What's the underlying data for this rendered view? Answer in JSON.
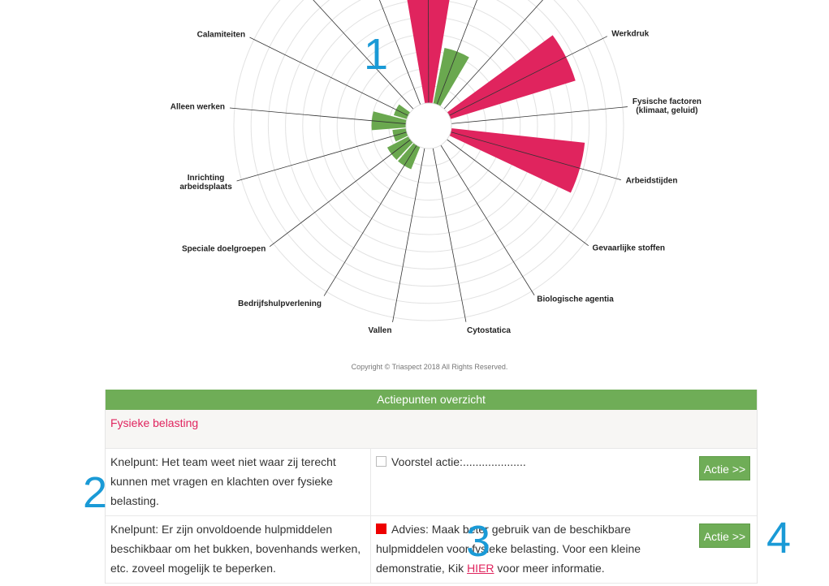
{
  "chart_data": {
    "type": "polar-column",
    "categories": [
      "Calamiteiten",
      null,
      null,
      null,
      null,
      null,
      "Werkdruk",
      "Fysische factoren\n(klimaat, geluid)",
      "Arbeidstijden",
      "Gevaarlijke stoffen",
      "Biologische agentia",
      "Cytostatica",
      "Vallen",
      "Bedrijfshulpverlening",
      "Speciale doelgroepen",
      "Inrichting\narbeidsplaats",
      "Alleen werken"
    ],
    "values": [
      0.8,
      0,
      0,
      7,
      3.3,
      0,
      7.6,
      0,
      7.8,
      0,
      0,
      0,
      0,
      1.4,
      1.4,
      0.8,
      2.0
    ],
    "colors": [
      "#6aa84f",
      "#6aa84f",
      "#6aa84f",
      "#e0245e",
      "#6aa84f",
      "#6aa84f",
      "#e0245e",
      "#6aa84f",
      "#e0245e",
      "#6aa84f",
      "#6aa84f",
      "#6aa84f",
      "#6aa84f",
      "#6aa84f",
      "#6aa84f",
      "#6aa84f",
      "#6aa84f"
    ],
    "ylim": [
      0,
      10
    ],
    "grid": true
  },
  "copyright": "Copyright © Triaspect 2018 All Rights Reserved.",
  "table": {
    "title": "Actiepunten overzicht",
    "section": "Fysieke belasting",
    "rows": [
      {
        "knelpunt": "Knelpunt: Het team weet niet waar zij terecht kunnen met vragen en klachten over fysieke belasting.",
        "actie": "Voorstel actie:....................",
        "button": "Actie >>"
      },
      {
        "knelpunt": "Knelpunt: Er zijn onvoldoende hulpmiddelen beschikbaar om het bukken, bovenhands werken, etc. zoveel mogelijk te beperken.",
        "advies": "Advies: Maak beter gebruik van de beschikbare hulpmiddelen voor fysieke belasting. Voor een kleine demonstratie, Kik ",
        "link": "HIER",
        "advies_end": " voor meer informatie.",
        "button": "Actie >>"
      }
    ]
  },
  "markers": [
    "1",
    "2",
    "3",
    "4"
  ]
}
